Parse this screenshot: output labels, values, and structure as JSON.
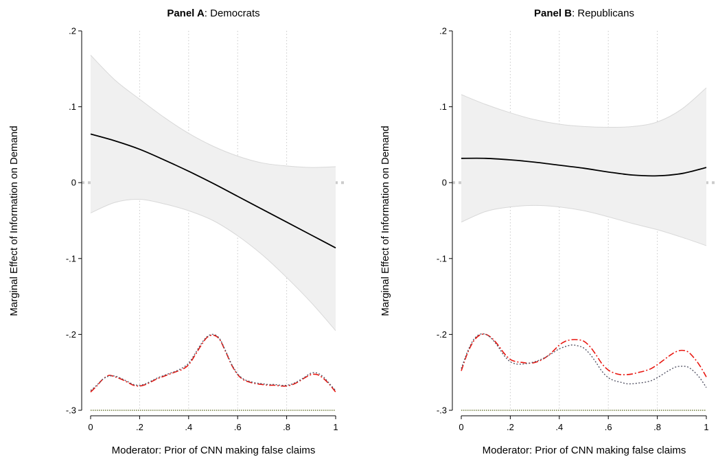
{
  "panels": [
    {
      "title_bold": "Panel A",
      "title_rest": ": Democrats",
      "ylabel": "Marginal Effect of Information on Demand",
      "xlabel": "Moderator: Prior of CNN making false claims",
      "chart_data": {
        "type": "line",
        "xlim": [
          0,
          1
        ],
        "ylim": [
          -0.3,
          0.2
        ],
        "xticks": [
          0,
          0.2,
          0.4,
          0.6,
          0.8,
          1
        ],
        "xtick_labels": [
          "0",
          ".2",
          ".4",
          ".6",
          ".8",
          "1"
        ],
        "yticks": [
          -0.3,
          -0.2,
          -0.1,
          0,
          0.1,
          0.2
        ],
        "ytick_labels": [
          "-.3",
          "-.2",
          "-.1",
          "0",
          ".1",
          ".2"
        ],
        "vertical_grid": true,
        "x": [
          0,
          0.1,
          0.2,
          0.3,
          0.4,
          0.5,
          0.6,
          0.7,
          0.8,
          0.9,
          1
        ],
        "series": [
          {
            "role": "estimate",
            "color": "#000000",
            "values": [
              0.064,
              0.055,
              0.044,
              0.03,
              0.015,
              -0.001,
              -0.018,
              -0.035,
              -0.052,
              -0.069,
              -0.086
            ]
          },
          {
            "role": "ci_upper",
            "color": "#d8d8d8",
            "values": [
              0.168,
              0.135,
              0.11,
              0.086,
              0.065,
              0.048,
              0.035,
              0.026,
              0.022,
              0.02,
              0.021
            ]
          },
          {
            "role": "ci_lower",
            "color": "#d8d8d8",
            "values": [
              -0.04,
              -0.026,
              -0.022,
              -0.028,
              -0.037,
              -0.05,
              -0.07,
              -0.095,
              -0.125,
              -0.158,
              -0.195
            ]
          }
        ],
        "density": {
          "x": [
            0,
            0.025,
            0.05,
            0.075,
            0.1,
            0.125,
            0.15,
            0.175,
            0.2,
            0.225,
            0.25,
            0.275,
            0.3,
            0.325,
            0.35,
            0.375,
            0.4,
            0.425,
            0.45,
            0.475,
            0.5,
            0.525,
            0.55,
            0.575,
            0.6,
            0.625,
            0.65,
            0.675,
            0.7,
            0.725,
            0.75,
            0.775,
            0.8,
            0.825,
            0.85,
            0.875,
            0.9,
            0.925,
            0.95,
            0.975,
            1
          ],
          "series": [
            {
              "color": "#e8150e",
              "values": [
                -0.276,
                -0.268,
                -0.259,
                -0.254,
                -0.256,
                -0.259,
                -0.263,
                -0.267,
                -0.268,
                -0.266,
                -0.262,
                -0.258,
                -0.255,
                -0.252,
                -0.249,
                -0.246,
                -0.24,
                -0.228,
                -0.215,
                -0.204,
                -0.201,
                -0.206,
                -0.222,
                -0.24,
                -0.253,
                -0.26,
                -0.263,
                -0.265,
                -0.266,
                -0.267,
                -0.267,
                -0.268,
                -0.268,
                -0.266,
                -0.262,
                -0.257,
                -0.253,
                -0.253,
                -0.258,
                -0.266,
                -0.276
              ]
            },
            {
              "color": "#555566",
              "values": [
                -0.274,
                -0.267,
                -0.259,
                -0.255,
                -0.255,
                -0.258,
                -0.262,
                -0.266,
                -0.267,
                -0.265,
                -0.261,
                -0.257,
                -0.254,
                -0.251,
                -0.248,
                -0.244,
                -0.238,
                -0.226,
                -0.213,
                -0.203,
                -0.2,
                -0.205,
                -0.221,
                -0.239,
                -0.252,
                -0.259,
                -0.262,
                -0.264,
                -0.265,
                -0.266,
                -0.266,
                -0.267,
                -0.267,
                -0.265,
                -0.261,
                -0.256,
                -0.251,
                -0.251,
                -0.256,
                -0.265,
                -0.274
              ]
            }
          ],
          "baseline": -0.3,
          "baseline_color": "#6e7a3a"
        }
      }
    },
    {
      "title_bold": "Panel B",
      "title_rest": ": Republicans",
      "ylabel": "Marginal Effect of Information on Demand",
      "xlabel": "Moderator: Prior of CNN making false claims",
      "chart_data": {
        "type": "line",
        "xlim": [
          0,
          1
        ],
        "ylim": [
          -0.3,
          0.2
        ],
        "xticks": [
          0,
          0.2,
          0.4,
          0.6,
          0.8,
          1
        ],
        "xtick_labels": [
          "0",
          ".2",
          ".4",
          ".6",
          ".8",
          "1"
        ],
        "yticks": [
          -0.3,
          -0.2,
          -0.1,
          0,
          0.1,
          0.2
        ],
        "ytick_labels": [
          "-.3",
          "-.2",
          "-.1",
          "0",
          ".1",
          ".2"
        ],
        "vertical_grid": true,
        "x": [
          0,
          0.1,
          0.2,
          0.3,
          0.4,
          0.5,
          0.6,
          0.7,
          0.8,
          0.9,
          1
        ],
        "series": [
          {
            "role": "estimate",
            "color": "#000000",
            "values": [
              0.032,
              0.032,
              0.03,
              0.027,
              0.023,
              0.019,
              0.014,
              0.01,
              0.009,
              0.012,
              0.02
            ]
          },
          {
            "role": "ci_upper",
            "color": "#d8d8d8",
            "values": [
              0.116,
              0.103,
              0.092,
              0.083,
              0.077,
              0.074,
              0.073,
              0.074,
              0.08,
              0.097,
              0.125
            ]
          },
          {
            "role": "ci_lower",
            "color": "#d8d8d8",
            "values": [
              -0.052,
              -0.038,
              -0.032,
              -0.03,
              -0.032,
              -0.037,
              -0.045,
              -0.054,
              -0.062,
              -0.072,
              -0.083
            ]
          }
        ],
        "density": {
          "x": [
            0,
            0.025,
            0.05,
            0.075,
            0.1,
            0.125,
            0.15,
            0.175,
            0.2,
            0.225,
            0.25,
            0.275,
            0.3,
            0.325,
            0.35,
            0.375,
            0.4,
            0.425,
            0.45,
            0.475,
            0.5,
            0.525,
            0.55,
            0.575,
            0.6,
            0.625,
            0.65,
            0.675,
            0.7,
            0.725,
            0.75,
            0.775,
            0.8,
            0.825,
            0.85,
            0.875,
            0.9,
            0.925,
            0.95,
            0.975,
            1
          ],
          "series": [
            {
              "color": "#e8150e",
              "values": [
                -0.248,
                -0.225,
                -0.209,
                -0.201,
                -0.2,
                -0.205,
                -0.214,
                -0.225,
                -0.233,
                -0.236,
                -0.237,
                -0.238,
                -0.237,
                -0.234,
                -0.229,
                -0.222,
                -0.214,
                -0.209,
                -0.207,
                -0.207,
                -0.209,
                -0.216,
                -0.227,
                -0.239,
                -0.247,
                -0.251,
                -0.253,
                -0.253,
                -0.252,
                -0.25,
                -0.248,
                -0.245,
                -0.24,
                -0.234,
                -0.228,
                -0.223,
                -0.221,
                -0.223,
                -0.231,
                -0.242,
                -0.256
              ]
            },
            {
              "color": "#555566",
              "values": [
                -0.245,
                -0.223,
                -0.207,
                -0.2,
                -0.2,
                -0.206,
                -0.216,
                -0.228,
                -0.236,
                -0.239,
                -0.239,
                -0.238,
                -0.236,
                -0.233,
                -0.229,
                -0.224,
                -0.219,
                -0.216,
                -0.214,
                -0.215,
                -0.218,
                -0.226,
                -0.237,
                -0.249,
                -0.257,
                -0.261,
                -0.263,
                -0.265,
                -0.265,
                -0.264,
                -0.263,
                -0.261,
                -0.257,
                -0.252,
                -0.247,
                -0.243,
                -0.242,
                -0.243,
                -0.249,
                -0.258,
                -0.27
              ]
            }
          ],
          "baseline": -0.3,
          "baseline_color": "#6e7a3a"
        }
      }
    }
  ]
}
